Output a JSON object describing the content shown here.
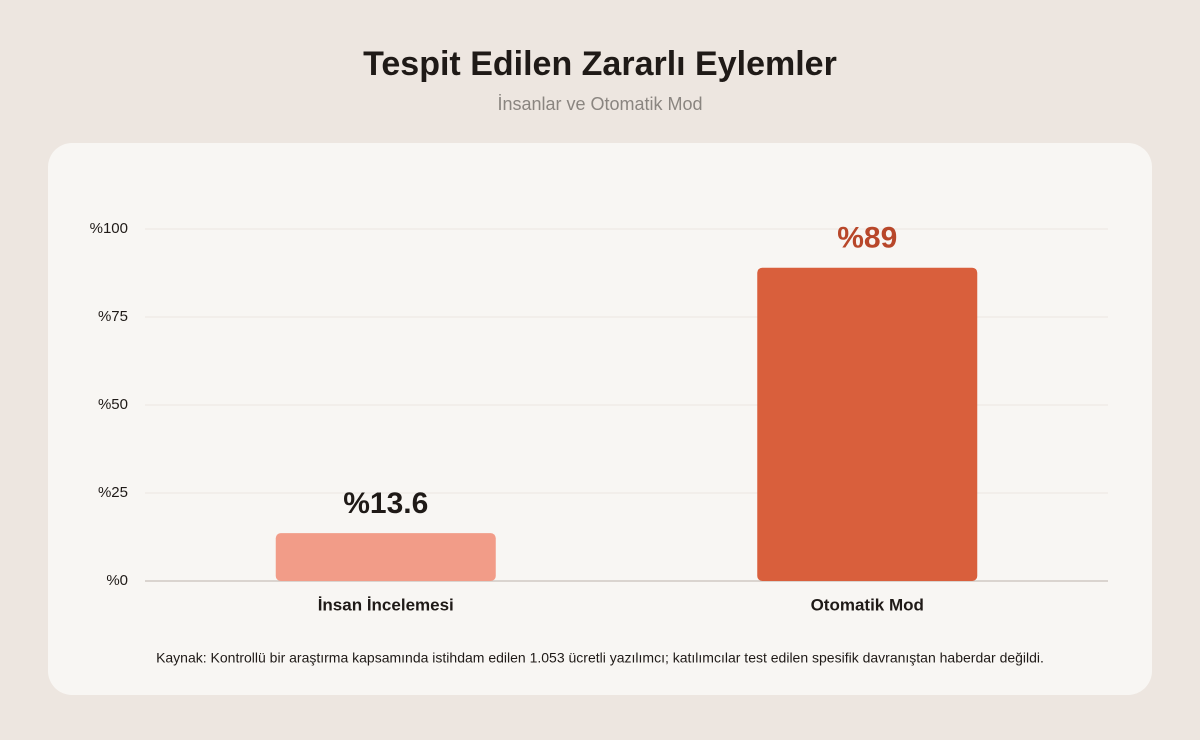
{
  "chart_data": {
    "type": "bar",
    "title": "Tespit Edilen Zararlı Eylemler",
    "subtitle": "İnsanlar ve Otomatik Mod",
    "categories": [
      "İnsan İncelemesi",
      "Otomatik Mod"
    ],
    "values": [
      13.6,
      89
    ],
    "value_labels": [
      "%13.6",
      "%89"
    ],
    "colors": [
      "#f29c88",
      "#d95f3c"
    ],
    "value_label_colors": [
      "#1f1a17",
      "#b8472a"
    ],
    "ylim": [
      0,
      100
    ],
    "yticks": [
      {
        "value": 0,
        "label": "%0"
      },
      {
        "value": 25,
        "label": "%25"
      },
      {
        "value": 50,
        "label": "%50"
      },
      {
        "value": 75,
        "label": "%75"
      },
      {
        "value": 100,
        "label": "%100"
      }
    ],
    "grid": true,
    "source": "Kaynak: Kontrollü bir araştırma kapsamında istihdam edilen 1.053 ücretli yazılımcı; katılımcılar test edilen spesifik davranıştan haberdar değildi."
  }
}
